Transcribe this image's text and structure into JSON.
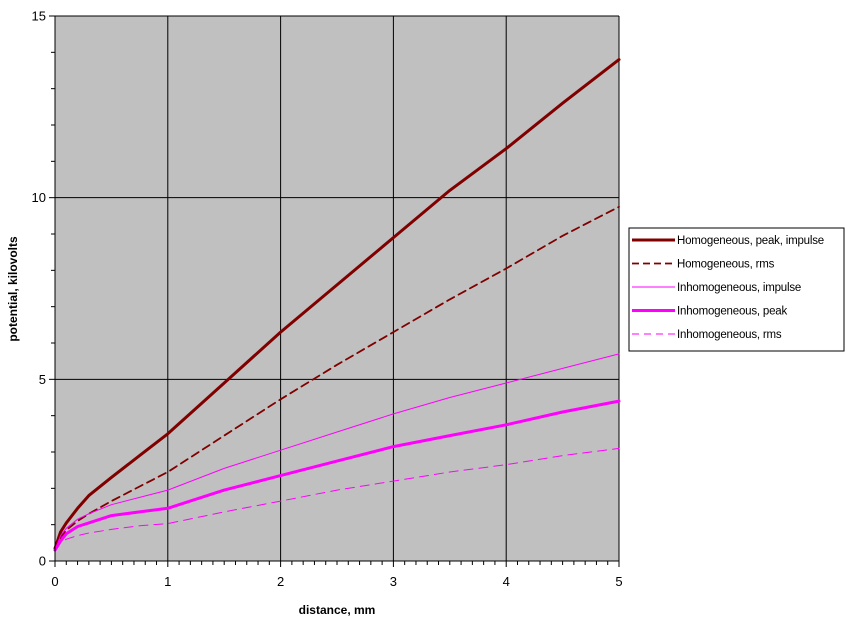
{
  "chart_data": {
    "type": "line",
    "title": "",
    "xlabel": "distance, mm",
    "ylabel": "potential, kilovolts",
    "xlim": [
      0,
      5
    ],
    "ylim": [
      0,
      15
    ],
    "x_ticks": [
      "0",
      "1",
      "2",
      "3",
      "4",
      "5"
    ],
    "y_ticks": [
      "0",
      "5",
      "10",
      "15"
    ],
    "x_minor_tick_step": 0.1,
    "y_minor_tick_step": 1,
    "grid": true,
    "plot_background": "#c0c0c0",
    "gridline_color": "#000000",
    "legend_position": "right",
    "series": [
      {
        "name": "Homogeneous, peak, impulse",
        "color": "#800000",
        "style": "solid",
        "weight": "heavy",
        "x": [
          0,
          0.05,
          0.1,
          0.2,
          0.3,
          0.5,
          0.75,
          1,
          1.5,
          2,
          2.5,
          3,
          3.5,
          4,
          4.5,
          5
        ],
        "y": [
          0.35,
          0.8,
          1.05,
          1.45,
          1.8,
          2.3,
          2.9,
          3.5,
          4.9,
          6.3,
          7.6,
          8.9,
          10.2,
          11.35,
          12.6,
          13.8
        ]
      },
      {
        "name": "Homogeneous, rms",
        "color": "#800000",
        "style": "dashed",
        "weight": "medium",
        "x": [
          0,
          0.05,
          0.1,
          0.2,
          0.3,
          0.5,
          0.75,
          1,
          1.5,
          2,
          2.5,
          3,
          3.5,
          4,
          4.5,
          5
        ],
        "y": [
          0.3,
          0.65,
          0.85,
          1.1,
          1.3,
          1.65,
          2.05,
          2.45,
          3.45,
          4.45,
          5.4,
          6.3,
          7.2,
          8.05,
          8.95,
          9.75
        ]
      },
      {
        "name": "Inhomogeneous, impulse",
        "color": "#ff00ff",
        "style": "solid",
        "weight": "thin",
        "x": [
          0,
          0.05,
          0.1,
          0.2,
          0.3,
          0.5,
          0.75,
          1,
          1.5,
          2,
          2.5,
          3,
          3.5,
          4,
          4.5,
          5
        ],
        "y": [
          0.3,
          0.7,
          0.9,
          1.15,
          1.3,
          1.55,
          1.75,
          1.95,
          2.55,
          3.05,
          3.55,
          4.05,
          4.5,
          4.9,
          5.3,
          5.7
        ]
      },
      {
        "name": "Inhomogeneous, peak",
        "color": "#ff00ff",
        "style": "solid",
        "weight": "heavy",
        "x": [
          0,
          0.05,
          0.1,
          0.2,
          0.3,
          0.5,
          0.75,
          1,
          1.5,
          2,
          2.5,
          3,
          3.5,
          4,
          4.5,
          5
        ],
        "y": [
          0.3,
          0.55,
          0.75,
          0.95,
          1.05,
          1.25,
          1.35,
          1.45,
          1.95,
          2.35,
          2.75,
          3.15,
          3.45,
          3.75,
          4.1,
          4.4
        ]
      },
      {
        "name": "Inhomogeneous, rms",
        "color": "#ff00ff",
        "style": "dashed",
        "weight": "thin",
        "x": [
          0,
          0.05,
          0.1,
          0.2,
          0.3,
          0.5,
          0.75,
          1,
          1.5,
          2,
          2.5,
          3,
          3.5,
          4,
          4.5,
          5
        ],
        "y": [
          0.3,
          0.5,
          0.6,
          0.7,
          0.77,
          0.87,
          0.97,
          1.03,
          1.35,
          1.65,
          1.95,
          2.2,
          2.45,
          2.65,
          2.9,
          3.1
        ]
      }
    ]
  }
}
